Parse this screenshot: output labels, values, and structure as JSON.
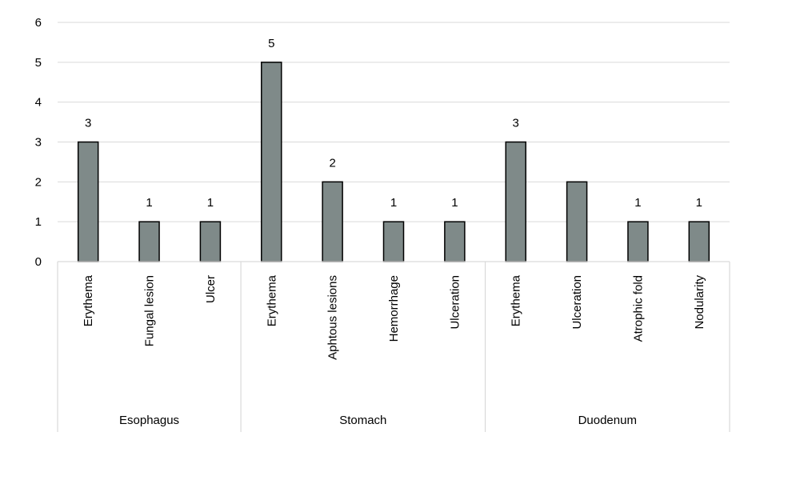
{
  "chart_data": {
    "type": "bar",
    "groups": [
      {
        "name": "Esophagus",
        "categories": [
          "Erythema",
          "Fungal lesion",
          "Ulcer"
        ]
      },
      {
        "name": "Stomach",
        "categories": [
          "Erythema",
          "Aphtous lesions",
          "Hemorrhage",
          "Ulceration"
        ]
      },
      {
        "name": "Duodenum",
        "categories": [
          "Erythema",
          "Ulceration",
          "Atrophic fold",
          "Nodularity"
        ]
      }
    ],
    "values": [
      3,
      1,
      1,
      5,
      2,
      1,
      1,
      3,
      2,
      1,
      1
    ],
    "data_labels": [
      "3",
      "1",
      "1",
      "5",
      "2",
      "1",
      "1",
      "3",
      "",
      "1",
      "1"
    ],
    "ylim": [
      0,
      6
    ],
    "yticks": [
      0,
      1,
      2,
      3,
      4,
      5,
      6
    ],
    "grid": true,
    "bar_color": "#7f8a89",
    "bar_edge_color": "#000000",
    "grid_color": "#d9d9d9"
  }
}
